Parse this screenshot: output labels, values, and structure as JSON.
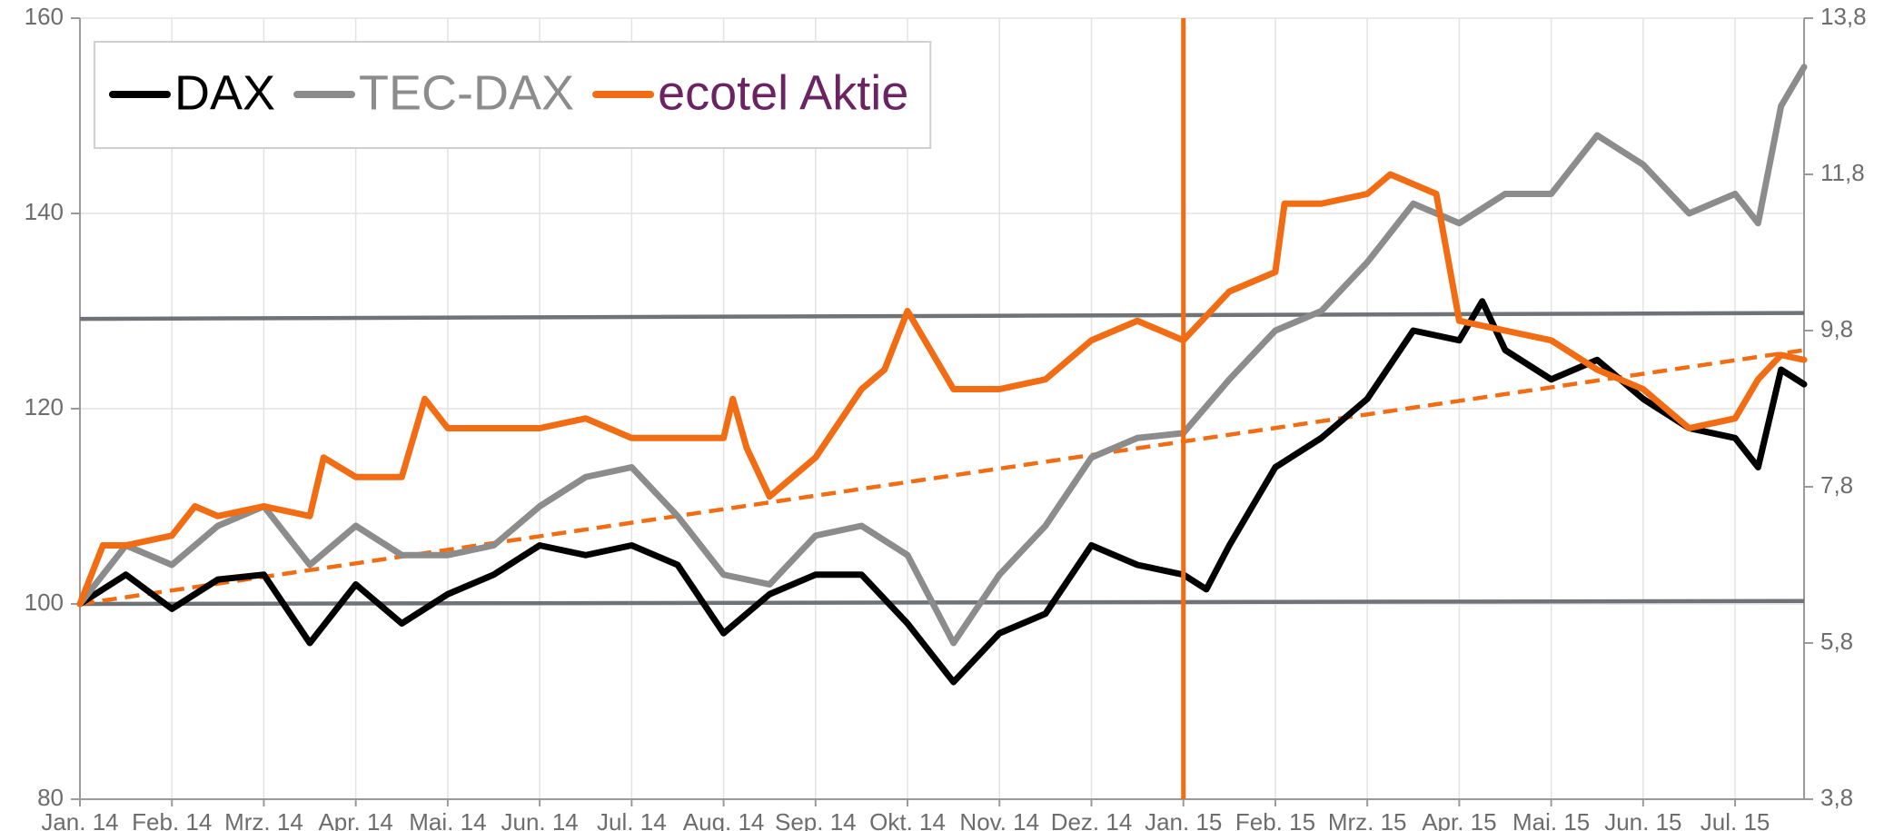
{
  "chart_data": {
    "type": "line",
    "xlim": [
      0,
      18.75
    ],
    "xticks": [
      {
        "value": 0,
        "label": "Jan. 14"
      },
      {
        "value": 1,
        "label": "Feb. 14"
      },
      {
        "value": 2,
        "label": "Mrz. 14"
      },
      {
        "value": 3,
        "label": "Apr. 14"
      },
      {
        "value": 4,
        "label": "Mai. 14"
      },
      {
        "value": 5,
        "label": "Jun. 14"
      },
      {
        "value": 6,
        "label": "Jul. 14"
      },
      {
        "value": 7,
        "label": "Aug. 14"
      },
      {
        "value": 8,
        "label": "Sep. 14"
      },
      {
        "value": 9,
        "label": "Okt. 14"
      },
      {
        "value": 10,
        "label": "Nov. 14"
      },
      {
        "value": 11,
        "label": "Dez. 14"
      },
      {
        "value": 12,
        "label": "Jan. 15"
      },
      {
        "value": 13,
        "label": "Feb. 15"
      },
      {
        "value": 14,
        "label": "Mrz. 15"
      },
      {
        "value": 15,
        "label": "Apr. 15"
      },
      {
        "value": 16,
        "label": "Mai. 15"
      },
      {
        "value": 17,
        "label": "Jun. 15"
      },
      {
        "value": 18,
        "label": "Jul. 15"
      }
    ],
    "ylim": [
      80,
      160
    ],
    "yticks": [
      80,
      100,
      120,
      140,
      160
    ],
    "y2lim": [
      3.8,
      13.8
    ],
    "y2ticks": [
      {
        "value": 3.8,
        "label": "3,8"
      },
      {
        "value": 5.8,
        "label": "5,8"
      },
      {
        "value": 7.8,
        "label": "7,8"
      },
      {
        "value": 9.8,
        "label": "9,8"
      },
      {
        "value": 11.8,
        "label": "11,8"
      },
      {
        "value": 13.8,
        "label": "13,8"
      }
    ],
    "grid": true,
    "legend": "upper left",
    "series": [
      {
        "name": "DAX",
        "color": "#000000",
        "label_color": "#000000",
        "x": [
          0,
          0.5,
          1,
          1.5,
          2,
          2.5,
          3,
          3.5,
          4,
          4.5,
          5,
          5.5,
          6,
          6.5,
          7,
          7.5,
          8,
          8.5,
          9,
          9.5,
          10,
          10.5,
          11,
          11.5,
          12,
          12.25,
          12.5,
          13,
          13.5,
          14,
          14.5,
          15,
          15.25,
          15.5,
          16,
          16.5,
          17,
          17.5,
          18,
          18.25,
          18.5,
          18.75
        ],
        "values": [
          100,
          103,
          99.5,
          102.5,
          103,
          96,
          102,
          98,
          101,
          103,
          106,
          105,
          106,
          104,
          97,
          101,
          103,
          103,
          98,
          92,
          97,
          99,
          106,
          104,
          103,
          101.5,
          106,
          114,
          117,
          121,
          128,
          127,
          131,
          126,
          123,
          125,
          121,
          118,
          117,
          114,
          124,
          122.5
        ]
      },
      {
        "name": "TEC-DAX",
        "color": "#8c8c8c",
        "label_color": "#8c8c8c",
        "x": [
          0,
          0.5,
          1,
          1.5,
          2,
          2.5,
          3,
          3.5,
          4,
          4.5,
          5,
          5.5,
          6,
          6.5,
          7,
          7.5,
          8,
          8.5,
          9,
          9.5,
          10,
          10.5,
          11,
          11.5,
          12,
          12.5,
          13,
          13.5,
          14,
          14.5,
          15,
          15.5,
          16,
          16.5,
          17,
          17.5,
          18,
          18.25,
          18.5,
          18.75
        ],
        "values": [
          100,
          106,
          104,
          108,
          110,
          104,
          108,
          105,
          105,
          106,
          110,
          113,
          114,
          109,
          103,
          102,
          107,
          108,
          105,
          96,
          103,
          108,
          115,
          117,
          117.5,
          123,
          128,
          130,
          135,
          141,
          139,
          142,
          142,
          148,
          145,
          140,
          142,
          139,
          151,
          155
        ]
      },
      {
        "name": "ecotel Aktie",
        "color": "#f26c13",
        "label_color": "#6b2462",
        "x": [
          0,
          0.25,
          0.5,
          1,
          1.25,
          1.5,
          2,
          2.5,
          2.65,
          3,
          3.5,
          3.75,
          4,
          4.5,
          5,
          5.5,
          6,
          6.5,
          7,
          7.1,
          7.25,
          7.5,
          8,
          8.5,
          8.75,
          9,
          9.5,
          10,
          10.5,
          11,
          11.5,
          12,
          12.5,
          13,
          13.1,
          13.5,
          14,
          14.25,
          14.5,
          14.75,
          15,
          15.5,
          16,
          16.5,
          17,
          17.5,
          18,
          18.25,
          18.5,
          18.75
        ],
        "values": [
          100,
          106,
          106,
          107,
          110,
          109,
          110,
          109,
          115,
          113,
          113,
          121,
          118,
          118,
          118,
          119,
          117,
          117,
          117,
          121,
          116,
          111,
          115,
          122,
          124,
          130,
          122,
          122,
          123,
          127,
          129,
          127,
          132,
          134,
          141,
          141,
          142,
          144,
          143,
          142,
          129,
          128,
          127,
          124,
          122,
          118,
          119,
          123,
          125.5,
          125
        ]
      }
    ],
    "reference_lines": [
      {
        "color": "#6f7378",
        "style": "solid",
        "x": [
          0,
          18.75
        ],
        "values": [
          129.2,
          129.8
        ]
      },
      {
        "color": "#6f7378",
        "style": "solid",
        "x": [
          0,
          18.75
        ],
        "values": [
          100,
          100.3
        ]
      },
      {
        "color": "#f26c13",
        "style": "dashed",
        "x": [
          0,
          18.75
        ],
        "values": [
          100,
          126
        ]
      }
    ],
    "vline": {
      "x": 12,
      "color": "#f26c13"
    }
  }
}
